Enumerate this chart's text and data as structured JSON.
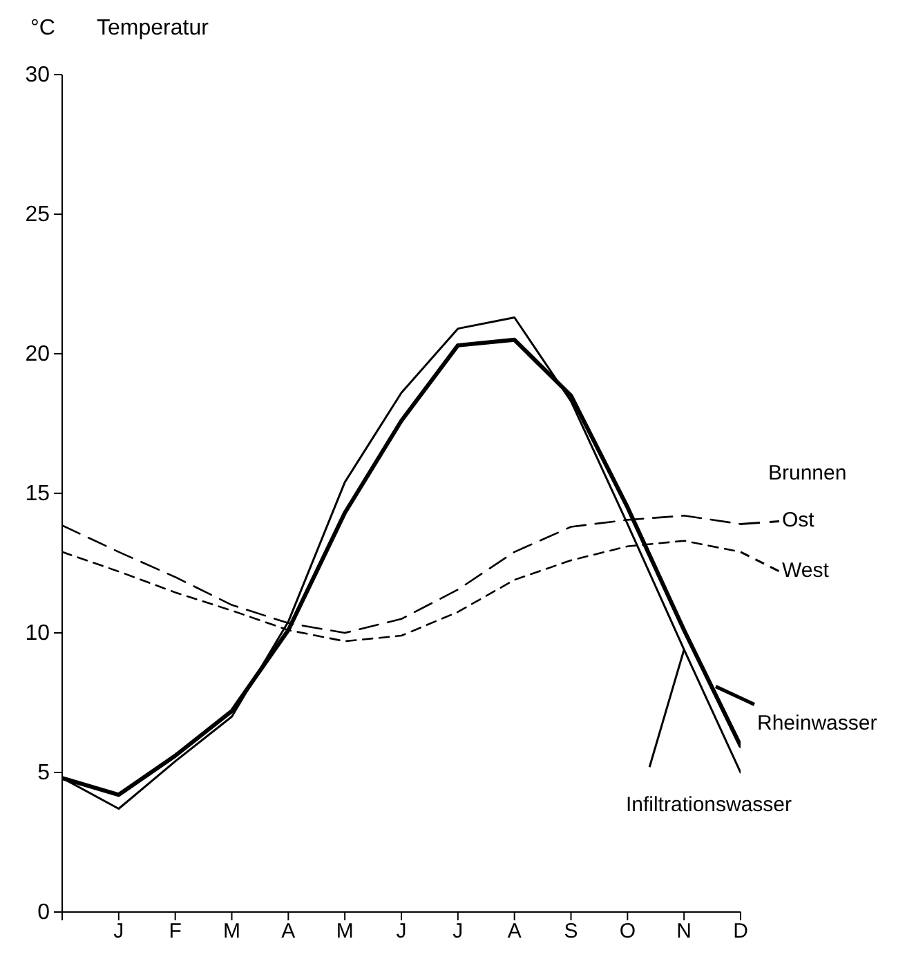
{
  "chart_data": {
    "type": "line",
    "ylabel": "Temperatur",
    "annotations": [
      "°C",
      "Brunnen"
    ],
    "categories": [
      null,
      "J",
      "F",
      "M",
      "A",
      "M",
      "J",
      "J",
      "A",
      "S",
      "O",
      "N",
      "D"
    ],
    "ylim": [
      0,
      30
    ],
    "yticks": [
      0,
      5,
      10,
      15,
      20,
      25,
      30
    ],
    "grid": false,
    "legend": "right",
    "marker": "none",
    "series": [
      {
        "name": "Ost",
        "color": "#000000",
        "line_style": "dashed",
        "values": [
          13.85,
          12.9,
          12.0,
          11.0,
          10.35,
          10.0,
          10.5,
          11.55,
          12.9,
          13.8,
          14.05,
          14.2,
          13.9
        ]
      },
      {
        "name": "West",
        "color": "#000000",
        "line_style": "dashed",
        "values": [
          12.9,
          12.2,
          11.45,
          10.8,
          10.1,
          9.7,
          9.9,
          10.75,
          11.9,
          12.6,
          13.1,
          13.3,
          12.9
        ]
      },
      {
        "name": "Rheinwasser",
        "color": "#000000",
        "line_style": "solid",
        "values": [
          4.8,
          4.2,
          5.6,
          7.2,
          10.1,
          14.3,
          17.6,
          20.3,
          20.5,
          18.5,
          14.5,
          10.1,
          5.95
        ]
      },
      {
        "name": "Infiltrationswasser",
        "color": "#000000",
        "line_style": "solid",
        "values": [
          4.8,
          3.7,
          5.4,
          7.0,
          10.4,
          15.4,
          18.6,
          20.9,
          21.3,
          18.3,
          13.9,
          9.4,
          5.0
        ]
      }
    ]
  }
}
